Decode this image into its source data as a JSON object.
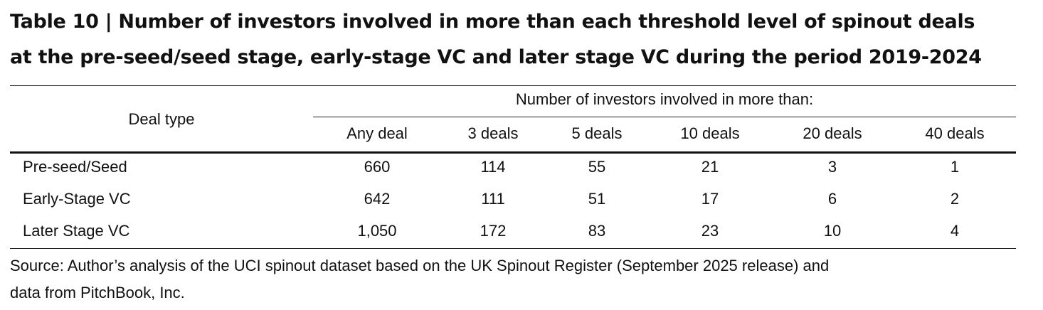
{
  "title": {
    "line1": "Table 10 | Number of investors involved in more than each threshold level of spinout deals",
    "line2": "at the pre-seed/seed stage, early-stage VC and later stage VC during the period 2019-2024"
  },
  "table": {
    "row_header": "Deal type",
    "group_header": "Number of investors involved in more than:",
    "columns": [
      "Any deal",
      "3 deals",
      "5 deals",
      "10 deals",
      "20 deals",
      "40 deals"
    ],
    "rows": [
      {
        "label": "Pre-seed/Seed",
        "values": [
          "660",
          "114",
          "55",
          "21",
          "3",
          "1"
        ]
      },
      {
        "label": "Early-Stage VC",
        "values": [
          "642",
          "111",
          "51",
          "17",
          "6",
          "2"
        ]
      },
      {
        "label": "Later Stage VC",
        "values": [
          "1,050",
          "172",
          "83",
          "23",
          "10",
          "4"
        ]
      }
    ]
  },
  "source": {
    "line1": "Source: Author’s analysis of the UCI spinout dataset based on the UK Spinout Register (September 2025 release) and",
    "line2": "data from PitchBook, Inc."
  }
}
